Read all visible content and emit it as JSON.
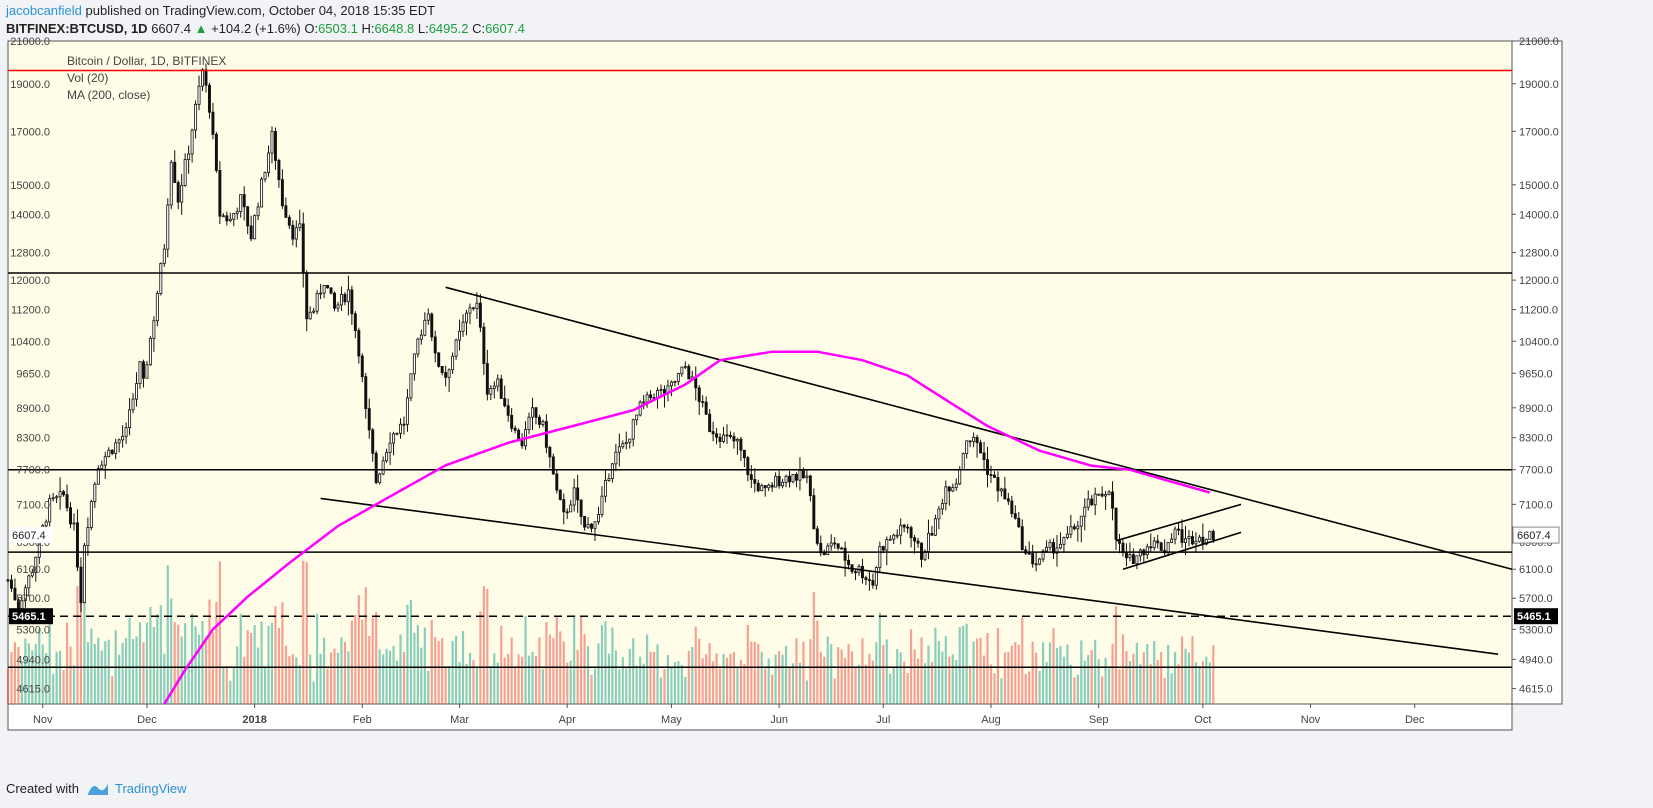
{
  "header": {
    "author": "jacobcanfield",
    "published": "published on TradingView.com, October 04, 2018 15:35 EDT",
    "symbol": "BITFINEX:BTCUSD, 1D",
    "last": "6607.4",
    "change": "+104.2 (+1.6%)",
    "open_label": "O:",
    "open": "6503.1",
    "high_label": "H:",
    "high": "6648.8",
    "low_label": "L:",
    "low": "6495.2",
    "close_label": "C:",
    "close": "6607.4"
  },
  "footer": {
    "created_with": "Created with",
    "brand": "TradingView"
  },
  "chart_data": {
    "type": "candlestick",
    "title": "Bitcoin / Dollar, 1D, BITFINEX",
    "indicators": [
      "Vol (20)",
      "MA (200, close)"
    ],
    "y_scale": "log",
    "ylim": [
      4450,
      21000
    ],
    "y_ticks": [
      4615,
      4940,
      5300,
      5700,
      6100,
      6500,
      7100,
      7700,
      8300,
      8900,
      9650,
      10400,
      11200,
      12000,
      12800,
      14000,
      15000,
      17000,
      19000,
      21000
    ],
    "y_tick_labels": [
      "4615.0",
      "4940.0",
      "5300.0",
      "5700.0",
      "6100.0",
      "6500.0",
      "7100.0",
      "7700.0",
      "8300.0",
      "8900.0",
      "9650.0",
      "10400.0",
      "11200.0",
      "12000.0",
      "12800.0",
      "14000.0",
      "15000.0",
      "17000.0",
      "19000.0",
      "21000.0"
    ],
    "x_start": "2017-10-22",
    "xlim": [
      "2017-10-22",
      "2018-12-29"
    ],
    "x_ticks": [
      {
        "date": "2017-11-01",
        "label": "Nov"
      },
      {
        "date": "2017-12-01",
        "label": "Dec"
      },
      {
        "date": "2018-01-01",
        "label": "2018"
      },
      {
        "date": "2018-02-01",
        "label": "Feb"
      },
      {
        "date": "2018-03-01",
        "label": "Mar"
      },
      {
        "date": "2018-04-01",
        "label": "Apr"
      },
      {
        "date": "2018-05-01",
        "label": "May"
      },
      {
        "date": "2018-06-01",
        "label": "Jun"
      },
      {
        "date": "2018-07-01",
        "label": "Jul"
      },
      {
        "date": "2018-08-01",
        "label": "Aug"
      },
      {
        "date": "2018-09-01",
        "label": "Sep"
      },
      {
        "date": "2018-10-01",
        "label": "Oct"
      },
      {
        "date": "2018-11-01",
        "label": "Nov"
      },
      {
        "date": "2018-12-01",
        "label": "Dec"
      }
    ],
    "price_path": [
      [
        "2017-10-22",
        5950
      ],
      [
        "2017-10-25",
        5600
      ],
      [
        "2017-10-29",
        6100
      ],
      [
        "2017-11-03",
        7100
      ],
      [
        "2017-11-07",
        7250
      ],
      [
        "2017-11-10",
        6700
      ],
      [
        "2017-11-12",
        5700
      ],
      [
        "2017-11-13",
        6500
      ],
      [
        "2017-11-17",
        7800
      ],
      [
        "2017-11-21",
        8100
      ],
      [
        "2017-11-25",
        8400
      ],
      [
        "2017-11-29",
        9800
      ],
      [
        "2017-11-30",
        9400
      ],
      [
        "2017-12-03",
        11000
      ],
      [
        "2017-12-06",
        13000
      ],
      [
        "2017-12-08",
        16000
      ],
      [
        "2017-12-10",
        14500
      ],
      [
        "2017-12-13",
        16300
      ],
      [
        "2017-12-17",
        19600
      ],
      [
        "2017-12-19",
        18000
      ],
      [
        "2017-12-22",
        14000
      ],
      [
        "2017-12-25",
        13800
      ],
      [
        "2017-12-28",
        14500
      ],
      [
        "2017-12-31",
        13300
      ],
      [
        "2018-01-03",
        15000
      ],
      [
        "2018-01-06",
        16800
      ],
      [
        "2018-01-09",
        14400
      ],
      [
        "2018-01-12",
        13400
      ],
      [
        "2018-01-14",
        13500
      ],
      [
        "2018-01-16",
        11000
      ],
      [
        "2018-01-18",
        11200
      ],
      [
        "2018-01-21",
        12000
      ],
      [
        "2018-01-24",
        11200
      ],
      [
        "2018-01-28",
        11700
      ],
      [
        "2018-01-31",
        10200
      ],
      [
        "2018-02-02",
        8800
      ],
      [
        "2018-02-05",
        7500
      ],
      [
        "2018-02-06",
        7700
      ],
      [
        "2018-02-09",
        8300
      ],
      [
        "2018-02-13",
        8600
      ],
      [
        "2018-02-17",
        10400
      ],
      [
        "2018-02-20",
        11200
      ],
      [
        "2018-02-22",
        10000
      ],
      [
        "2018-02-25",
        9600
      ],
      [
        "2018-02-28",
        10300
      ],
      [
        "2018-03-04",
        11300
      ],
      [
        "2018-03-06",
        11300
      ],
      [
        "2018-03-09",
        9300
      ],
      [
        "2018-03-12",
        9400
      ],
      [
        "2018-03-17",
        8400
      ],
      [
        "2018-03-19",
        8200
      ],
      [
        "2018-03-22",
        8800
      ],
      [
        "2018-03-25",
        8500
      ],
      [
        "2018-03-29",
        7300
      ],
      [
        "2018-03-31",
        6900
      ],
      [
        "2018-04-03",
        7300
      ],
      [
        "2018-04-06",
        6700
      ],
      [
        "2018-04-10",
        6900
      ],
      [
        "2018-04-14",
        7900
      ],
      [
        "2018-04-18",
        8200
      ],
      [
        "2018-04-22",
        8900
      ],
      [
        "2018-04-26",
        9200
      ],
      [
        "2018-04-30",
        9250
      ],
      [
        "2018-05-05",
        9800
      ],
      [
        "2018-05-08",
        9300
      ],
      [
        "2018-05-12",
        8500
      ],
      [
        "2018-05-16",
        8300
      ],
      [
        "2018-05-20",
        8200
      ],
      [
        "2018-05-24",
        7500
      ],
      [
        "2018-05-28",
        7300
      ],
      [
        "2018-05-31",
        7500
      ],
      [
        "2018-06-05",
        7600
      ],
      [
        "2018-06-09",
        7550
      ],
      [
        "2018-06-11",
        6800
      ],
      [
        "2018-06-13",
        6300
      ],
      [
        "2018-06-17",
        6500
      ],
      [
        "2018-06-22",
        6100
      ],
      [
        "2018-06-24",
        6100
      ],
      [
        "2018-06-28",
        5900
      ],
      [
        "2018-06-30",
        6400
      ],
      [
        "2018-07-04",
        6600
      ],
      [
        "2018-07-08",
        6750
      ],
      [
        "2018-07-12",
        6300
      ],
      [
        "2018-07-16",
        6800
      ],
      [
        "2018-07-19",
        7400
      ],
      [
        "2018-07-22",
        7500
      ],
      [
        "2018-07-25",
        8300
      ],
      [
        "2018-07-28",
        8200
      ],
      [
        "2018-07-31",
        7700
      ],
      [
        "2018-08-03",
        7400
      ],
      [
        "2018-08-07",
        7000
      ],
      [
        "2018-08-11",
        6300
      ],
      [
        "2018-08-14",
        6200
      ],
      [
        "2018-08-18",
        6400
      ],
      [
        "2018-08-22",
        6500
      ],
      [
        "2018-08-26",
        6800
      ],
      [
        "2018-08-29",
        7100
      ],
      [
        "2018-09-01",
        7200
      ],
      [
        "2018-09-04",
        7400
      ],
      [
        "2018-09-06",
        6550
      ],
      [
        "2018-09-09",
        6200
      ],
      [
        "2018-09-12",
        6300
      ],
      [
        "2018-09-16",
        6500
      ],
      [
        "2018-09-20",
        6400
      ],
      [
        "2018-09-23",
        6700
      ],
      [
        "2018-09-26",
        6500
      ],
      [
        "2018-09-29",
        6600
      ],
      [
        "2018-10-02",
        6550
      ],
      [
        "2018-10-04",
        6607
      ]
    ],
    "ma200_path": [
      [
        "2017-12-06",
        4450
      ],
      [
        "2017-12-12",
        4820
      ],
      [
        "2017-12-20",
        5300
      ],
      [
        "2017-12-30",
        5720
      ],
      [
        "2018-01-11",
        6190
      ],
      [
        "2018-01-25",
        6750
      ],
      [
        "2018-02-08",
        7200
      ],
      [
        "2018-02-25",
        7780
      ],
      [
        "2018-03-15",
        8200
      ],
      [
        "2018-04-01",
        8500
      ],
      [
        "2018-04-20",
        8850
      ],
      [
        "2018-05-05",
        9400
      ],
      [
        "2018-05-15",
        9950
      ],
      [
        "2018-05-30",
        10150
      ],
      [
        "2018-06-12",
        10150
      ],
      [
        "2018-06-25",
        9950
      ],
      [
        "2018-07-08",
        9600
      ],
      [
        "2018-07-20",
        9020
      ],
      [
        "2018-07-31",
        8530
      ],
      [
        "2018-08-15",
        8050
      ],
      [
        "2018-08-30",
        7770
      ],
      [
        "2018-09-10",
        7700
      ],
      [
        "2018-09-20",
        7520
      ],
      [
        "2018-10-03",
        7300
      ]
    ],
    "horizontal_levels": [
      {
        "price": 19600,
        "color": "#ff0000",
        "style": "solid"
      },
      {
        "price": 12200,
        "color": "#000000",
        "style": "solid"
      },
      {
        "price": 7700,
        "color": "#000000",
        "style": "solid"
      },
      {
        "price": 6350,
        "color": "#000000",
        "style": "solid"
      },
      {
        "price": 5465.1,
        "color": "#000000",
        "style": "dashed",
        "label": "5465.1"
      },
      {
        "price": 4850,
        "color": "#000000",
        "style": "solid"
      }
    ],
    "trendlines": [
      {
        "from": [
          "2018-02-25",
          11800
        ],
        "to": [
          "2018-12-29",
          6100
        ]
      },
      {
        "from": [
          "2018-01-20",
          7200
        ],
        "to": [
          "2018-12-25",
          5000
        ]
      },
      {
        "from": [
          "2018-09-06",
          6520
        ],
        "to": [
          "2018-10-12",
          7100
        ]
      },
      {
        "from": [
          "2018-09-08",
          6100
        ],
        "to": [
          "2018-10-12",
          6650
        ]
      }
    ],
    "last_price_label": "6607.4",
    "colors": {
      "up": "#26a69a",
      "down": "#ef5350",
      "ma": "#ff00ff",
      "bg": "#fffde7"
    }
  }
}
